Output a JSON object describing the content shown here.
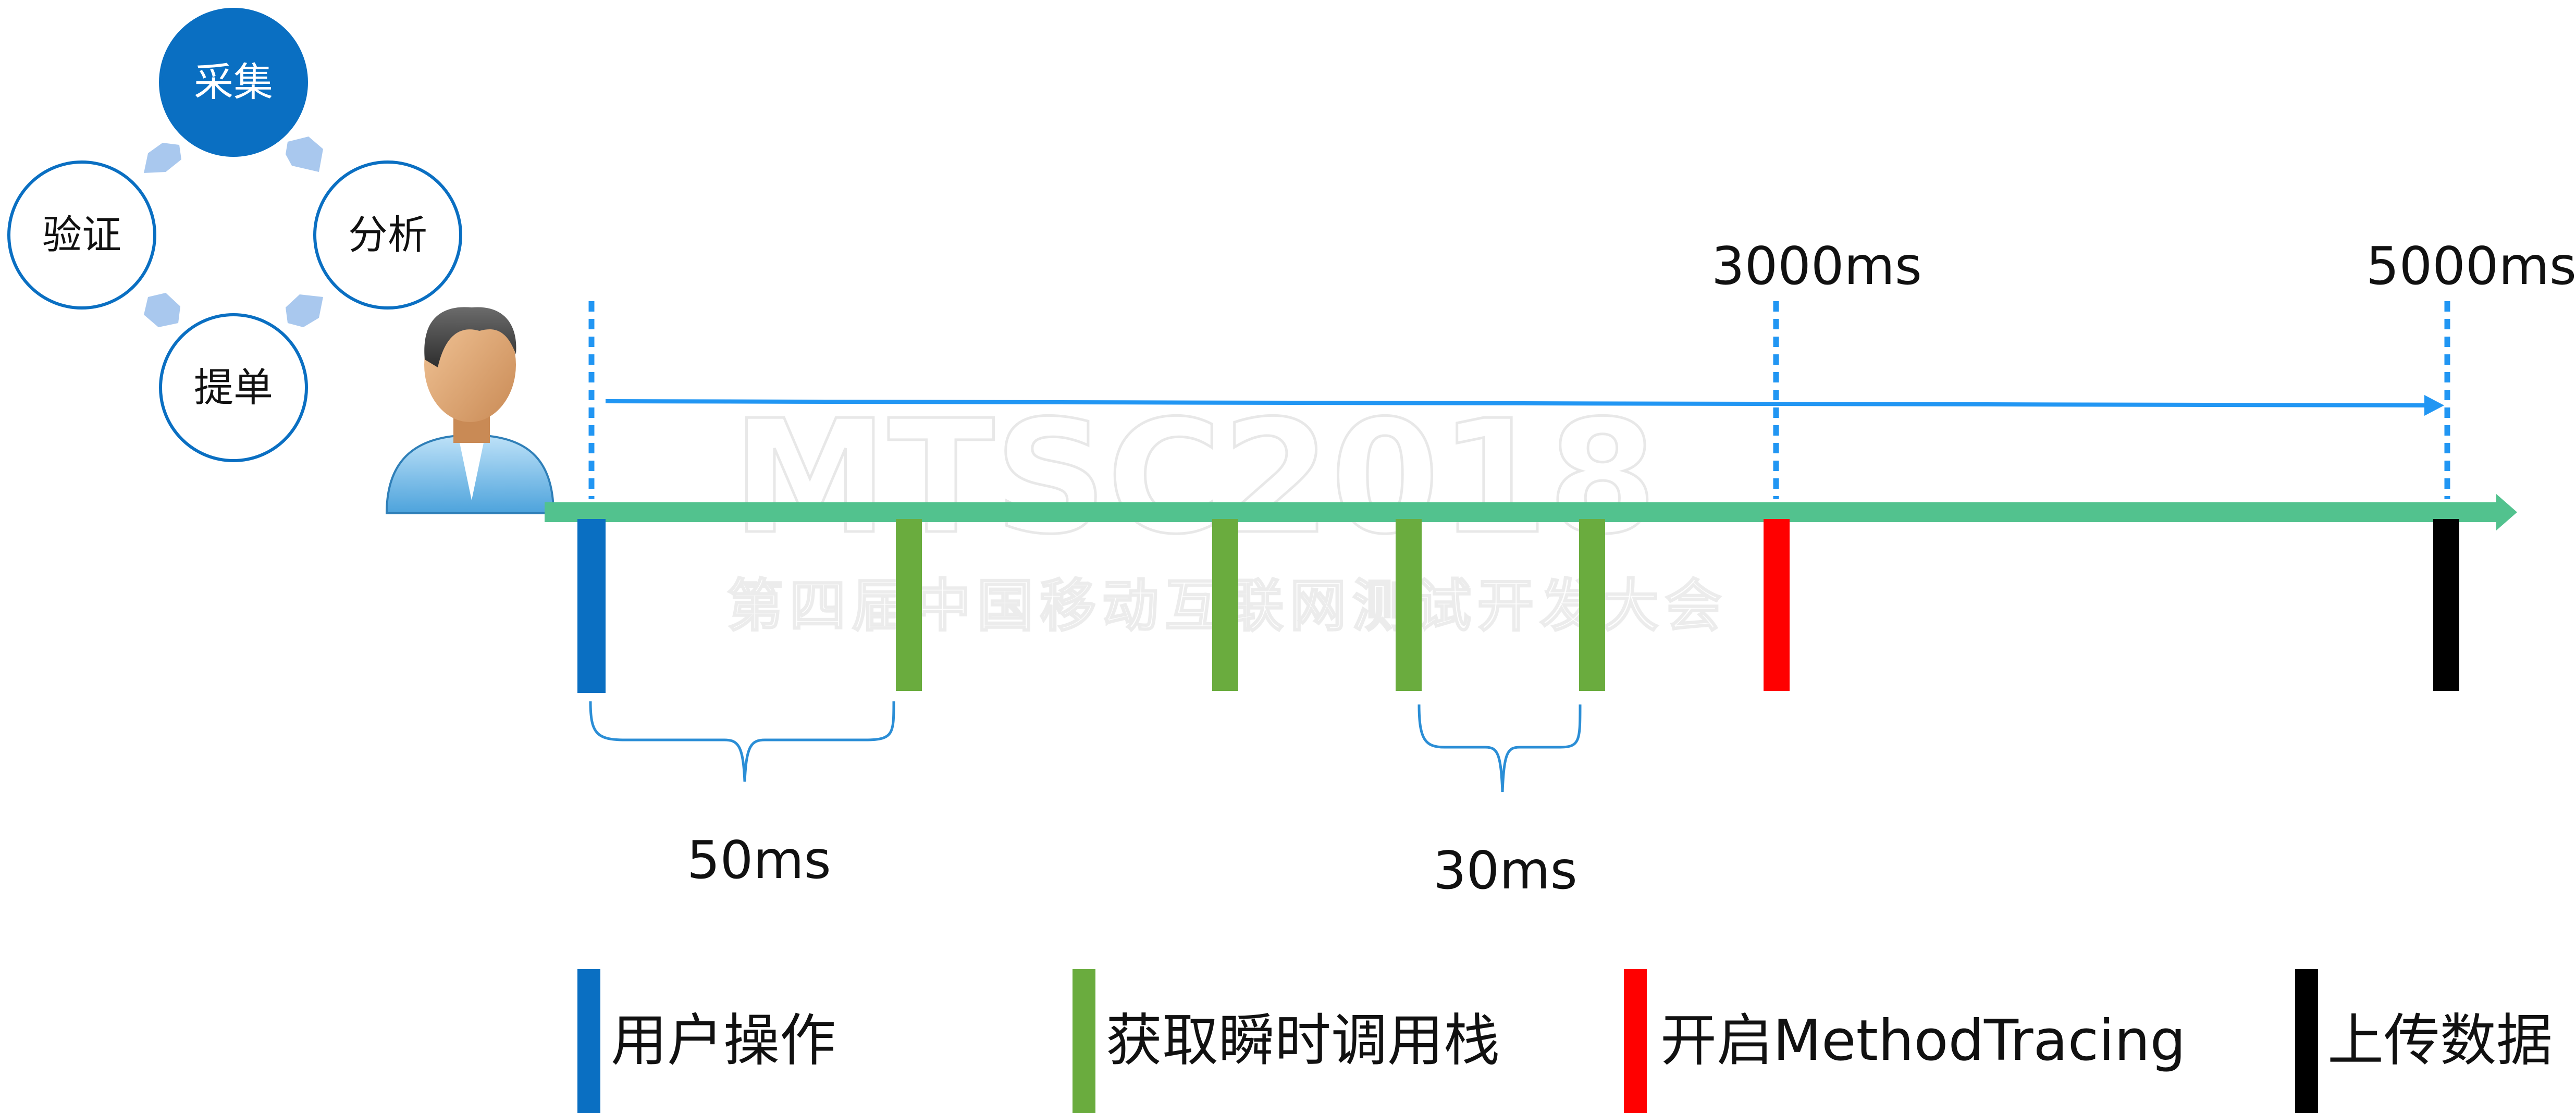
{
  "cycle": {
    "nodes": [
      {
        "id": "collect",
        "label": "采集",
        "filled": true
      },
      {
        "id": "analyze",
        "label": "分析",
        "filled": false
      },
      {
        "id": "submit",
        "label": "提单",
        "filled": false
      },
      {
        "id": "verify",
        "label": "验证",
        "filled": false
      }
    ],
    "accent": "#0a6fc2",
    "arrow_color": "#a9c8ee"
  },
  "watermark": {
    "title": "MTSC2018",
    "subtitle": "第四届中国移动互联网测试开发大会"
  },
  "timeline": {
    "axis_color": "#52c28e",
    "arrow_color": "#2196f3",
    "labels": {
      "t3000": "3000ms",
      "t5000": "5000ms",
      "span1": "50ms",
      "span2": "30ms"
    },
    "event_colors": {
      "user": "#0a6fc2",
      "stack": "#6aac3e",
      "tracing": "#ff0000",
      "upload": "#000000"
    }
  },
  "legend": [
    {
      "key": "user",
      "label": "用户操作",
      "color": "#0a6fc2"
    },
    {
      "key": "stack",
      "label": "获取瞬时调用栈",
      "color": "#6aac3e"
    },
    {
      "key": "tracing",
      "label": "开启MethodTracing",
      "color": "#ff0000"
    },
    {
      "key": "upload",
      "label": "上传数据",
      "color": "#000000"
    }
  ]
}
